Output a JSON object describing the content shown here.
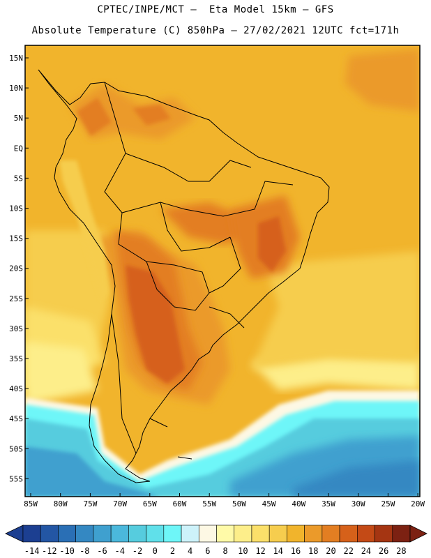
{
  "header": {
    "line1": "CPTEC/INPE/MCT –  Eta Model 15km – GFS",
    "line2": "Absolute Temperature (C) 850hPa – 27/02/2021 12UTC fct=171h"
  },
  "map": {
    "lat_labels": [
      "15N",
      "10N",
      "5N",
      "EQ",
      "5S",
      "10S",
      "15S",
      "20S",
      "25S",
      "30S",
      "35S",
      "40S",
      "45S",
      "50S",
      "55S"
    ],
    "lon_labels": [
      "85W",
      "80W",
      "75W",
      "70W",
      "65W",
      "60W",
      "55W",
      "50W",
      "45W",
      "40W",
      "35W",
      "30W",
      "25W",
      "20W"
    ],
    "lat_range": [
      -57.5,
      16.5
    ],
    "lon_range": [
      -86,
      -20
    ]
  },
  "colorbar": {
    "ticks": [
      "-14",
      "-12",
      "-10",
      "-8",
      "-6",
      "-4",
      "-2",
      "0",
      "2",
      "4",
      "6",
      "8",
      "10",
      "12",
      "14",
      "16",
      "18",
      "20",
      "22",
      "24",
      "26",
      "28"
    ],
    "colors": [
      "#1c3f91",
      "#2356a4",
      "#2a6fb5",
      "#3488c2",
      "#3fa0cf",
      "#4bb8dc",
      "#56ccde",
      "#60e0ea",
      "#6ef6f8",
      "#cdf2fa",
      "#fdf8e4",
      "#fffaa8",
      "#fdee8a",
      "#fbe06a",
      "#f6cd4e",
      "#f1b42c",
      "#eb9a2a",
      "#e37e22",
      "#d6611a",
      "#c44a16",
      "#a53512",
      "#7c2112"
    ]
  },
  "colors": {
    "warm_base": "#f1b42c",
    "land_hot": "#d6611a",
    "ocean_cold": "#3fa0cf"
  }
}
